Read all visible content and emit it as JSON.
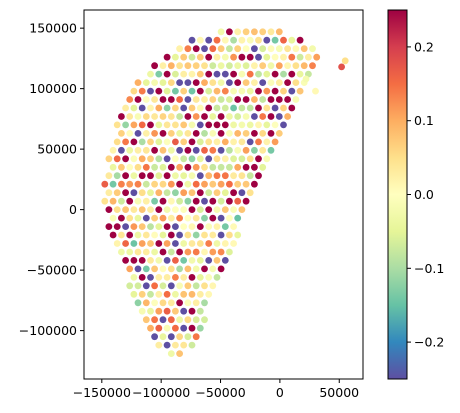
{
  "chart_data": {
    "type": "scatter",
    "title": "",
    "xlabel": "",
    "ylabel": "",
    "xlim": [
      -165000,
      70000
    ],
    "ylim": [
      -140000,
      165000
    ],
    "x_ticks": [
      -150000,
      -100000,
      -50000,
      0,
      50000
    ],
    "x_tick_labels": [
      "−150000",
      "−100000",
      "−50000",
      "0",
      "50000"
    ],
    "y_ticks": [
      -100000,
      -50000,
      0,
      50000,
      100000,
      150000
    ],
    "y_tick_labels": [
      "−100000",
      "−50000",
      "0",
      "50000",
      "100000",
      "150000"
    ],
    "grid": false,
    "colormap": "Spectral_r",
    "color_range": [
      -0.25,
      0.25
    ],
    "colorbar": {
      "ticks": [
        -0.2,
        -0.1,
        0.0,
        0.1,
        0.2
      ],
      "tick_labels": [
        "−0.2",
        "−0.1",
        "0.0",
        "0.1",
        "0.2"
      ]
    },
    "point_cloud": {
      "description_of_region": "dense grid of points filling a curved region",
      "grid_spacing": 7000,
      "approx_point_count": 900,
      "outline_x": [
        -150000,
        -145000,
        -135000,
        -120000,
        -100000,
        -80000,
        -60000,
        -40000,
        -20000,
        0,
        20000,
        32000,
        32000,
        25000,
        15000,
        5000,
        -5000,
        -15000,
        -25000,
        -35000,
        -45000,
        -55000,
        -65000,
        -75000,
        -85000,
        -95000,
        -105000,
        -115000,
        -125000,
        -135000,
        -145000,
        -150000
      ],
      "outline_y": [
        5000,
        45000,
        80000,
        105000,
        125000,
        138000,
        145000,
        150000,
        150000,
        148000,
        142000,
        135000,
        128000,
        110000,
        90000,
        70000,
        50000,
        30000,
        5000,
        -20000,
        -45000,
        -70000,
        -95000,
        -115000,
        -125000,
        -122000,
        -110000,
        -95000,
        -70000,
        -40000,
        -15000,
        5000
      ]
    },
    "outliers": [
      {
        "x": 52000,
        "y": 118000,
        "c": 0.18
      },
      {
        "x": 55000,
        "y": 123000,
        "c": 0.05
      },
      {
        "x": 30000,
        "y": 98000,
        "c": 0.01
      },
      {
        "x": 22000,
        "y": 108000,
        "c": -0.02
      }
    ]
  }
}
